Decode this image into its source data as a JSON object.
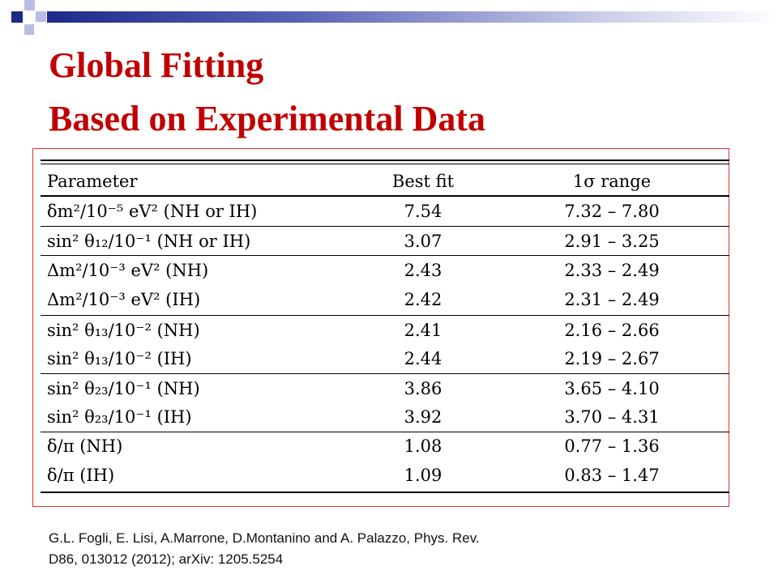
{
  "slide": {
    "title_line1": "Global Fitting",
    "title_line2": "Based on Experimental  Data",
    "citation_line1": "G.L. Fogli, E. Lisi, A.Marrone, D.Montanino and A. Palazzo, Phys. Rev.",
    "citation_line2": "D86, 013012 (2012); arXiv: 1205.5254",
    "accent_color": "#c00000",
    "brand_color": "#1e2a8a"
  },
  "table": {
    "headers": {
      "parameter": "Parameter",
      "best_fit": "Best fit",
      "range": "1σ range"
    },
    "rows": [
      {
        "parameter": "δm²/10⁻⁵ eV² (NH or IH)",
        "best_fit": "7.54",
        "range": "7.32 – 7.80"
      },
      {
        "parameter": "sin² θ₁₂/10⁻¹ (NH or IH)",
        "best_fit": "3.07",
        "range": "2.91 – 3.25"
      },
      {
        "parameter": "Δm²/10⁻³ eV² (NH)",
        "best_fit": "2.43",
        "range": "2.33 – 2.49"
      },
      {
        "parameter": "Δm²/10⁻³ eV² (IH)",
        "best_fit": "2.42",
        "range": "2.31 – 2.49"
      },
      {
        "parameter": "sin² θ₁₃/10⁻² (NH)",
        "best_fit": "2.41",
        "range": "2.16 – 2.66"
      },
      {
        "parameter": "sin² θ₁₃/10⁻² (IH)",
        "best_fit": "2.44",
        "range": "2.19 – 2.67"
      },
      {
        "parameter": "sin² θ₂₃/10⁻¹ (NH)",
        "best_fit": "3.86",
        "range": "3.65 – 4.10"
      },
      {
        "parameter": "sin² θ₂₃/10⁻¹ (IH)",
        "best_fit": "3.92",
        "range": "3.70 – 4.31"
      },
      {
        "parameter": "δ/π (NH)",
        "best_fit": "1.08",
        "range": "0.77 – 1.36"
      },
      {
        "parameter": "δ/π (IH)",
        "best_fit": "1.09",
        "range": "0.83 – 1.47"
      }
    ]
  }
}
